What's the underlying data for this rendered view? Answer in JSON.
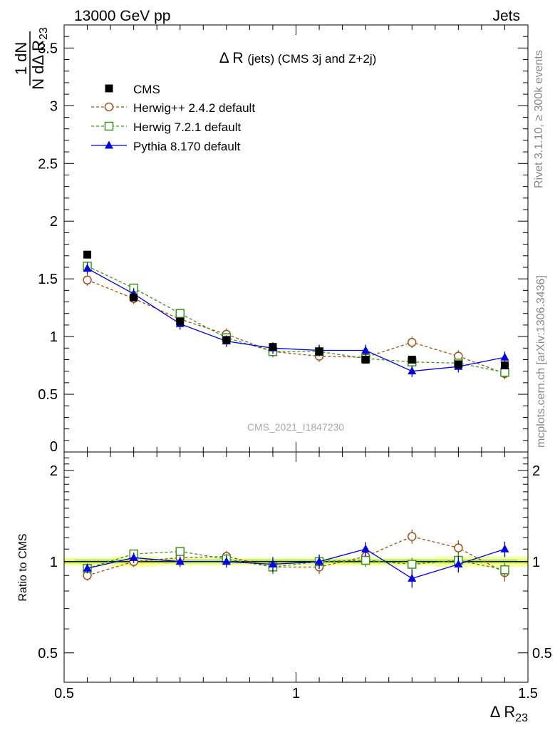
{
  "header": {
    "left": "13000 GeV pp",
    "right": "Jets"
  },
  "side_labels": {
    "rivet": "Rivet 3.1.10, ≥ 300k events",
    "mcplots": "mcplots.cern.ch [arXiv:1306.3436]"
  },
  "watermark": "CMS_2021_I1847230",
  "colors": {
    "cms": "#000000",
    "herwigpp": "#a0521a",
    "herwig7": "#3c961e",
    "pythia": "#0000e6",
    "band_inner": "#d8f05a",
    "band_outer": "#f6ffa0"
  },
  "chart_data": [
    {
      "type": "scatter",
      "title": "Δ R (jets) (CMS 3j and Z+2j)",
      "title_parts": {
        "main": "Δ R",
        "sub": "(jets) (CMS 3j and Z+2j)"
      },
      "ylabel": {
        "num": "1  dN",
        "den": "N dΔ R",
        "den_sub": "23"
      },
      "xlim": [
        0.5,
        1.5
      ],
      "ylim": [
        0,
        3.7
      ],
      "yticks": [
        {
          "v": 0,
          "label": "0"
        },
        {
          "v": 0.5,
          "label": "0.5"
        },
        {
          "v": 1,
          "label": "1"
        },
        {
          "v": 1.5,
          "label": "1.5"
        },
        {
          "v": 2,
          "label": "2"
        },
        {
          "v": 2.5,
          "label": "2.5"
        },
        {
          "v": 3,
          "label": "3"
        },
        {
          "v": 3.5,
          "label": "3.5"
        }
      ],
      "x": [
        0.55,
        0.65,
        0.75,
        0.85,
        0.95,
        1.05,
        1.15,
        1.25,
        1.35,
        1.45
      ],
      "legend_position": "top-left",
      "series": [
        {
          "name": "CMS",
          "key": "cms",
          "values": [
            1.71,
            1.34,
            1.13,
            0.97,
            0.91,
            0.87,
            0.8,
            0.8,
            0.76,
            0.75
          ],
          "err": [
            0.02,
            0.02,
            0.02,
            0.02,
            0.02,
            0.02,
            0.02,
            0.02,
            0.02,
            0.02
          ]
        },
        {
          "name": "Herwig++ 2.4.2 default",
          "key": "herwigpp",
          "values": [
            1.49,
            1.33,
            1.15,
            1.02,
            0.87,
            0.83,
            0.82,
            0.95,
            0.83,
            0.68
          ],
          "err": [
            0.05,
            0.05,
            0.05,
            0.05,
            0.05,
            0.05,
            0.05,
            0.05,
            0.05,
            0.05
          ]
        },
        {
          "name": "Herwig 7.2.1 default",
          "key": "herwig7",
          "values": [
            1.61,
            1.42,
            1.2,
            0.99,
            0.87,
            0.87,
            0.81,
            0.78,
            0.77,
            0.69
          ],
          "err": [
            0.04,
            0.04,
            0.04,
            0.04,
            0.04,
            0.04,
            0.04,
            0.04,
            0.04,
            0.04
          ]
        },
        {
          "name": "Pythia 8.170 default",
          "key": "pythia",
          "values": [
            1.59,
            1.37,
            1.11,
            0.96,
            0.9,
            0.88,
            0.88,
            0.7,
            0.74,
            0.82
          ],
          "err": [
            0.05,
            0.05,
            0.05,
            0.05,
            0.05,
            0.05,
            0.05,
            0.05,
            0.05,
            0.05
          ]
        }
      ]
    },
    {
      "type": "scatter",
      "ylabel": "Ratio to CMS",
      "xlabel": {
        "main": "Δ R",
        "sub": "23"
      },
      "xlim": [
        0.5,
        1.5
      ],
      "ylim": [
        0.4,
        2.3
      ],
      "y_scale": "log",
      "xticks": [
        {
          "v": 0.5,
          "label": "0.5"
        },
        {
          "v": 1,
          "label": "1"
        },
        {
          "v": 1.5,
          "label": "1.5"
        }
      ],
      "yticks": [
        {
          "v": 0.5,
          "label": "0.5"
        },
        {
          "v": 1,
          "label": "1"
        },
        {
          "v": 2,
          "label": "2"
        }
      ],
      "x": [
        0.55,
        0.65,
        0.75,
        0.85,
        0.95,
        1.05,
        1.15,
        1.25,
        1.35,
        1.45
      ],
      "band": {
        "inner": [
          0.015,
          0.015,
          0.015,
          0.015,
          0.015,
          0.015,
          0.015,
          0.015,
          0.015,
          0.015
        ],
        "outer": [
          0.03,
          0.04,
          0.03,
          0.03,
          0.03,
          0.03,
          0.03,
          0.03,
          0.04,
          0.04
        ]
      },
      "series": [
        {
          "name": "Herwig++ 2.4.2 default",
          "key": "herwigpp",
          "values": [
            0.9,
            1.0,
            1.03,
            1.04,
            0.96,
            0.96,
            1.04,
            1.21,
            1.11,
            0.92
          ],
          "err": [
            0.035,
            0.04,
            0.04,
            0.045,
            0.05,
            0.05,
            0.06,
            0.065,
            0.065,
            0.06
          ]
        },
        {
          "name": "Herwig 7.2.1 default",
          "key": "herwig7",
          "values": [
            0.95,
            1.06,
            1.08,
            1.02,
            0.96,
            1.0,
            1.01,
            0.98,
            1.01,
            0.94
          ],
          "err": [
            0.03,
            0.035,
            0.035,
            0.04,
            0.045,
            0.045,
            0.05,
            0.05,
            0.05,
            0.05
          ]
        },
        {
          "name": "Pythia 8.170 default",
          "key": "pythia",
          "values": [
            0.95,
            1.03,
            1.0,
            1.0,
            0.98,
            1.0,
            1.1,
            0.88,
            0.98,
            1.1
          ],
          "err": [
            0.035,
            0.04,
            0.04,
            0.045,
            0.055,
            0.055,
            0.06,
            0.06,
            0.06,
            0.065
          ]
        }
      ]
    }
  ]
}
